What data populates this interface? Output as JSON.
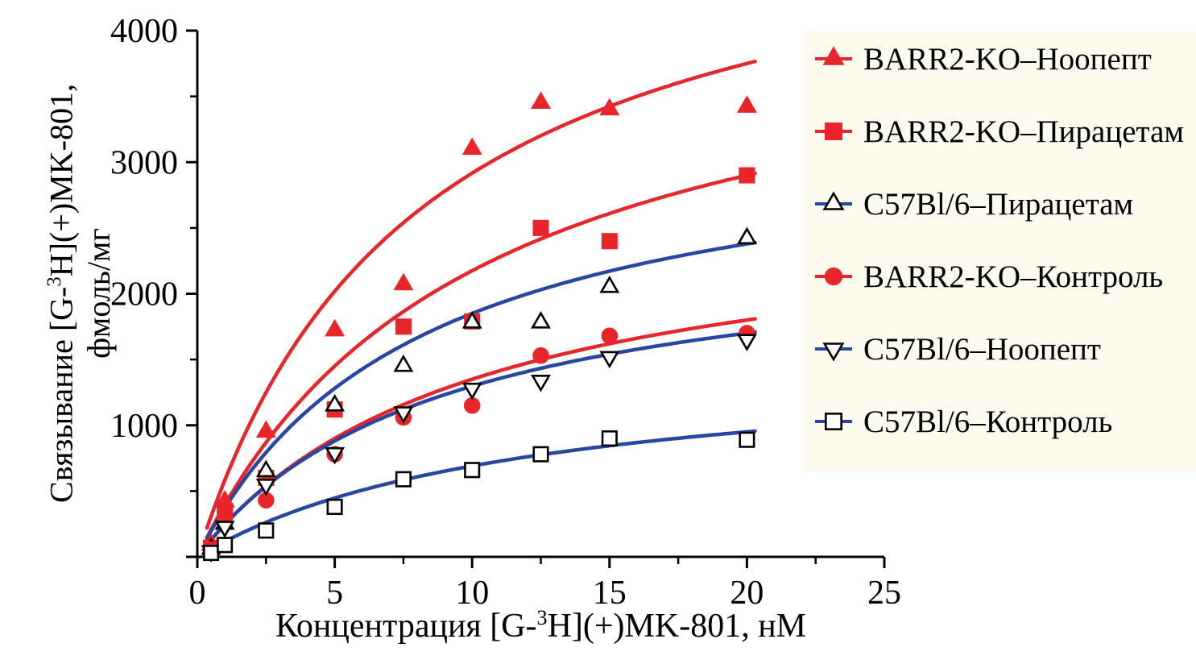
{
  "chart_data": {
    "type": "scatter",
    "title": "",
    "xlabel": {
      "pre": "Концентрация [G-",
      "sup": "3",
      "post": "H](+)MK-801, нМ"
    },
    "ylabel": {
      "line1_pre": "Связывание [G-",
      "line1_sup": "3",
      "line1_post": "H](+)MK-801,",
      "line2": "фмоль/мг"
    },
    "xlim": [
      0,
      25
    ],
    "ylim": [
      0,
      4000
    ],
    "x_ticks": [
      0,
      5,
      10,
      15,
      20,
      25
    ],
    "x_tick_labels": [
      "0",
      "5",
      "10",
      "15",
      "20",
      "25"
    ],
    "y_ticks": [
      0,
      1000,
      2000,
      3000,
      4000
    ],
    "y_tick_labels": [
      "",
      "1000",
      "2000",
      "3000",
      "4000"
    ],
    "x_minor_step": 2.5,
    "y_minor_step": 500,
    "grid": false,
    "legend_position": "right",
    "curve_model": "one-site binding: y = Bmax*x/(Kd+x)",
    "curve_x_range": [
      0.35,
      20.4
    ],
    "colors": {
      "red": "#e8252a",
      "blue": "#2747a3",
      "black": "#000000",
      "legend_bg": "#fcfbee"
    },
    "series": [
      {
        "name": "BARR2-KO–Ноопепт",
        "marker": "triangle-up",
        "marker_fill": "#e8252a",
        "marker_stroke": "#e8252a",
        "line_color": "#e8252a",
        "fit": {
          "bmax": 5250,
          "kd": 8
        },
        "points": [
          [
            0.5,
            90
          ],
          [
            1,
            420
          ],
          [
            2.5,
            950
          ],
          [
            5,
            1720
          ],
          [
            7.5,
            2070
          ],
          [
            10,
            3100
          ],
          [
            12.5,
            3450
          ],
          [
            15,
            3400
          ],
          [
            20,
            3420
          ]
        ]
      },
      {
        "name": "BARR2-KO–Пирацетам",
        "marker": "square",
        "marker_fill": "#e8252a",
        "marker_stroke": "#e8252a",
        "line_color": "#e8252a",
        "fit": {
          "bmax": 4350,
          "kd": 10
        },
        "points": [
          [
            0.5,
            70
          ],
          [
            1,
            350
          ],
          [
            2.5,
            600
          ],
          [
            5,
            1120
          ],
          [
            7.5,
            1750
          ],
          [
            10,
            1790
          ],
          [
            12.5,
            2500
          ],
          [
            15,
            2400
          ],
          [
            20,
            2900
          ]
        ]
      },
      {
        "name": "C57Bl/6–Пирацетам",
        "marker": "triangle-up",
        "marker_fill": "#ffffff",
        "marker_stroke": "#000000",
        "line_color": "#2747a3",
        "fit": {
          "bmax": 3330,
          "kd": 8
        },
        "points": [
          [
            0.5,
            60
          ],
          [
            1,
            250
          ],
          [
            2.5,
            650
          ],
          [
            5,
            1150
          ],
          [
            7.5,
            1450
          ],
          [
            10,
            1780
          ],
          [
            12.5,
            1780
          ],
          [
            15,
            2050
          ],
          [
            20,
            2420
          ]
        ]
      },
      {
        "name": "BARR2-KO–Контроль",
        "marker": "circle",
        "marker_fill": "#e8252a",
        "marker_stroke": "#e8252a",
        "line_color": "#e8252a",
        "fit": {
          "bmax": 2700,
          "kd": 10
        },
        "points": [
          [
            0.5,
            55
          ],
          [
            1,
            300
          ],
          [
            2.5,
            430
          ],
          [
            5,
            780
          ],
          [
            7.5,
            1060
          ],
          [
            10,
            1150
          ],
          [
            12.5,
            1530
          ],
          [
            15,
            1680
          ],
          [
            20,
            1700
          ]
        ]
      },
      {
        "name": "C57Bl/6–Ноопепт",
        "marker": "triangle-down",
        "marker_fill": "#ffffff",
        "marker_stroke": "#000000",
        "line_color": "#2747a3",
        "fit": {
          "bmax": 2465,
          "kd": 9
        },
        "points": [
          [
            0.5,
            45
          ],
          [
            1,
            230
          ],
          [
            2.5,
            550
          ],
          [
            5,
            790
          ],
          [
            7.5,
            1100
          ],
          [
            10,
            1280
          ],
          [
            12.5,
            1340
          ],
          [
            15,
            1520
          ],
          [
            20,
            1650
          ]
        ]
      },
      {
        "name": "C57Bl/6–Контроль",
        "marker": "square",
        "marker_fill": "#ffffff",
        "marker_stroke": "#000000",
        "line_color": "#2747a3",
        "fit": {
          "bmax": 1520,
          "kd": 12
        },
        "points": [
          [
            0.5,
            30
          ],
          [
            1,
            90
          ],
          [
            2.5,
            200
          ],
          [
            5,
            380
          ],
          [
            7.5,
            590
          ],
          [
            10,
            660
          ],
          [
            12.5,
            780
          ],
          [
            15,
            900
          ],
          [
            20,
            890
          ]
        ]
      }
    ]
  }
}
